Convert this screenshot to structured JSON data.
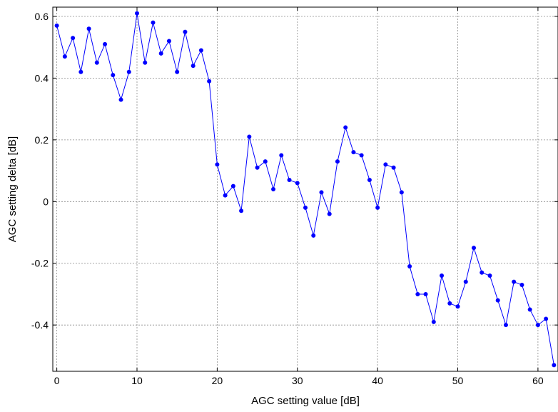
{
  "chart_data": {
    "type": "line",
    "title": "",
    "xlabel": "AGC setting value [dB]",
    "ylabel": "AGC setting delta [dB]",
    "xlim": [
      -0.5,
      62.5
    ],
    "ylim": [
      -0.55,
      0.63
    ],
    "x_ticks": [
      0,
      10,
      20,
      30,
      40,
      50,
      60
    ],
    "x_tick_labels": [
      "0",
      "10",
      "20",
      "30",
      "40",
      "50",
      "60"
    ],
    "y_ticks": [
      0.6,
      0.4,
      0.2,
      0,
      -0.2,
      -0.4
    ],
    "y_tick_labels": [
      "0.6",
      "0.4",
      "0.2",
      "0",
      "-0.2",
      "-0.4"
    ],
    "grid": true,
    "legend": "none",
    "series": [
      {
        "color": "#0000ff",
        "marker": "dot",
        "x": [
          0,
          1,
          2,
          3,
          4,
          5,
          6,
          7,
          8,
          9,
          10,
          11,
          12,
          13,
          14,
          15,
          16,
          17,
          18,
          19,
          20,
          21,
          22,
          23,
          24,
          25,
          26,
          27,
          28,
          29,
          30,
          31,
          32,
          33,
          34,
          35,
          36,
          37,
          38,
          39,
          40,
          41,
          42,
          43,
          44,
          45,
          46,
          47,
          48,
          49,
          50,
          51,
          52,
          53,
          54,
          55,
          56,
          57,
          58,
          59,
          60,
          61,
          62
        ],
        "values": [
          0.57,
          0.47,
          0.53,
          0.42,
          0.56,
          0.45,
          0.51,
          0.41,
          0.33,
          0.42,
          0.61,
          0.45,
          0.58,
          0.48,
          0.52,
          0.42,
          0.55,
          0.44,
          0.49,
          0.39,
          0.12,
          0.02,
          0.05,
          -0.03,
          0.21,
          0.11,
          0.13,
          0.04,
          0.15,
          0.07,
          0.06,
          -0.02,
          -0.11,
          0.03,
          -0.04,
          0.13,
          0.24,
          0.16,
          0.15,
          0.07,
          -0.02,
          0.12,
          0.11,
          0.03,
          -0.21,
          -0.3,
          -0.3,
          -0.39,
          -0.24,
          -0.33,
          -0.34,
          -0.26,
          -0.15,
          -0.23,
          -0.24,
          -0.32,
          -0.4,
          -0.26,
          -0.27,
          -0.35,
          -0.4,
          -0.38,
          -0.53
        ]
      }
    ]
  }
}
